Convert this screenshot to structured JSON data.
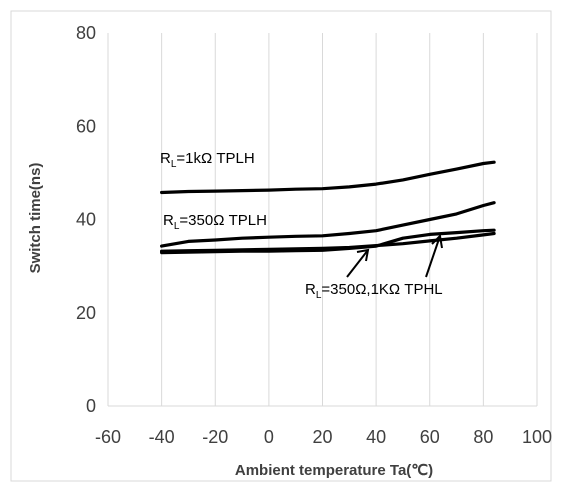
{
  "chart_data": {
    "type": "line",
    "xlabel": "Ambient temperature Ta(℃)",
    "ylabel": "Switch time(ns)",
    "xlim": [
      -60,
      100
    ],
    "ylim": [
      0,
      80
    ],
    "xticks": [
      "-60",
      "-40",
      "-20",
      "0",
      "20",
      "40",
      "60",
      "80",
      "100"
    ],
    "yticks": [
      "0",
      "20",
      "40",
      "60",
      "80"
    ],
    "grid": "vertical",
    "legend": "none",
    "annotations": [
      {
        "main": "R",
        "sub": "L",
        "rest": "=1kΩ TPLH"
      },
      {
        "main": "R",
        "sub": "L",
        "rest": "=350Ω TPLH"
      },
      {
        "main": "R",
        "sub": "L",
        "rest": "=350Ω,1KΩ TPHL"
      }
    ],
    "x": [
      -40,
      -30,
      -20,
      -10,
      0,
      10,
      20,
      30,
      40,
      50,
      60,
      70,
      80,
      84
    ],
    "series": [
      {
        "values": [
          45.8,
          46.0,
          46.1,
          46.2,
          46.3,
          46.5,
          46.6,
          47.0,
          47.6,
          48.5,
          49.7,
          50.8,
          52.0,
          52.3
        ]
      },
      {
        "values": [
          34.3,
          35.3,
          35.6,
          36.0,
          36.2,
          36.4,
          36.5,
          37.0,
          37.6,
          38.8,
          40.0,
          41.2,
          43.0,
          43.6
        ]
      },
      {
        "values": [
          33.2,
          33.3,
          33.4,
          33.5,
          33.6,
          33.7,
          33.8,
          34.0,
          34.4,
          34.8,
          35.4,
          36.0,
          36.7,
          37.0
        ]
      },
      {
        "values": [
          32.9,
          33.0,
          33.1,
          33.2,
          33.2,
          33.3,
          33.4,
          33.8,
          34.3,
          36.0,
          36.8,
          37.2,
          37.6,
          37.7
        ]
      }
    ],
    "colors": {
      "line": "#000000",
      "grid": "#d9d9d9",
      "text": "#404040",
      "border": "#d9d9d9"
    }
  }
}
